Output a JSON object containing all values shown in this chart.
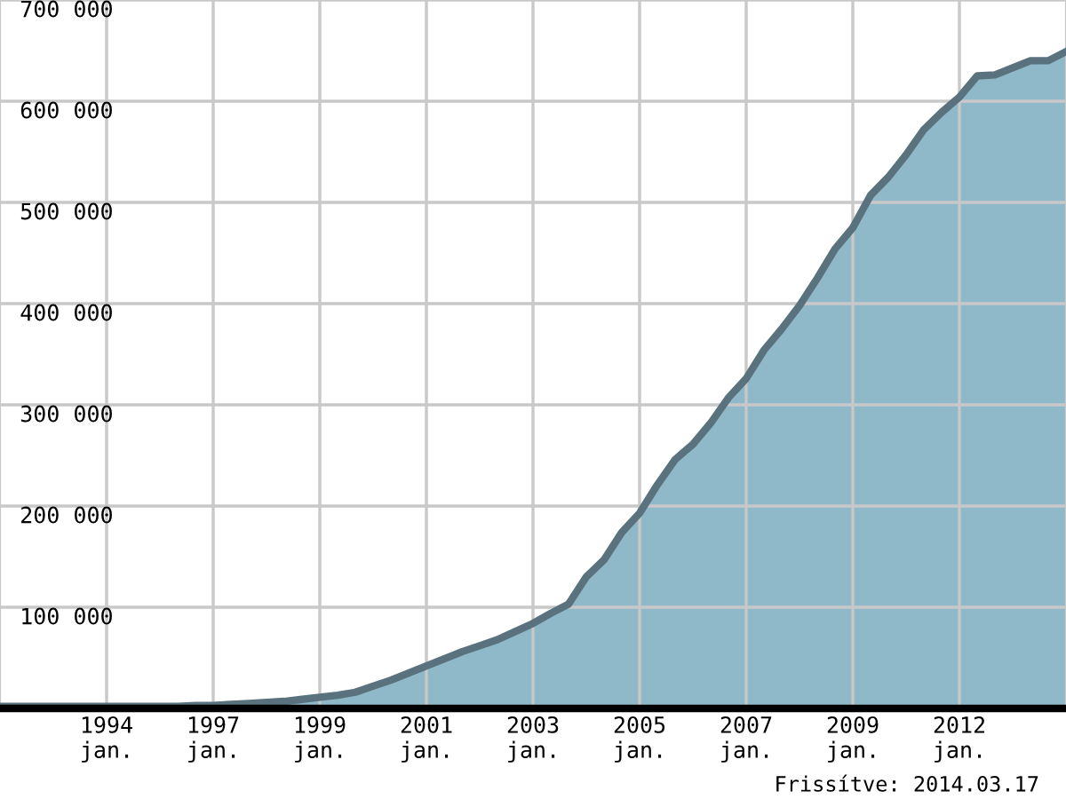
{
  "chart_data": {
    "type": "area",
    "categories": [
      null,
      null,
      null,
      null,
      null,
      null,
      "1994\njan.",
      null,
      null,
      null,
      null,
      null,
      "1997\njan.",
      null,
      null,
      null,
      null,
      null,
      "1999\njan.",
      null,
      null,
      null,
      null,
      null,
      "2001\njan.",
      null,
      null,
      null,
      null,
      null,
      "2003\njan.",
      null,
      null,
      null,
      null,
      null,
      "2005\njan.",
      null,
      null,
      null,
      null,
      null,
      "2007\njan.",
      null,
      null,
      null,
      null,
      null,
      "2009\njan.",
      null,
      null,
      null,
      null,
      null,
      "2012\njan.",
      null,
      null,
      null,
      null,
      null,
      null
    ],
    "series": [
      {
        "color": "#8fb8c9",
        "values": [
          2000,
          2000,
          2000,
          2000,
          2000,
          2000,
          2000,
          2000,
          2000,
          2000,
          2000,
          3000,
          3000,
          4000,
          5000,
          6000,
          7000,
          9000,
          11000,
          13000,
          16000,
          22000,
          28000,
          35000,
          42000,
          49000,
          56000,
          62000,
          68000,
          76000,
          84000,
          94000,
          103000,
          130000,
          147000,
          174000,
          193000,
          221000,
          246000,
          261000,
          282000,
          307000,
          326000,
          354000,
          375000,
          398000,
          425000,
          454000,
          475000,
          507000,
          525000,
          547000,
          572000,
          589000,
          604000,
          625000,
          626000,
          633000,
          640000,
          640000,
          649000
        ]
      }
    ],
    "ylim": [
      0,
      700000
    ],
    "yticks": [
      {
        "value": 100000,
        "label": "100 000"
      },
      {
        "value": 200000,
        "label": "200 000"
      },
      {
        "value": 300000,
        "label": "300 000"
      },
      {
        "value": 400000,
        "label": "400 000"
      },
      {
        "value": 500000,
        "label": "500 000"
      },
      {
        "value": 600000,
        "label": "600 000"
      },
      {
        "value": 700000,
        "label": "700 000"
      }
    ],
    "grid": true,
    "annotations": [
      "Frissítve: 2014.03.17"
    ]
  }
}
